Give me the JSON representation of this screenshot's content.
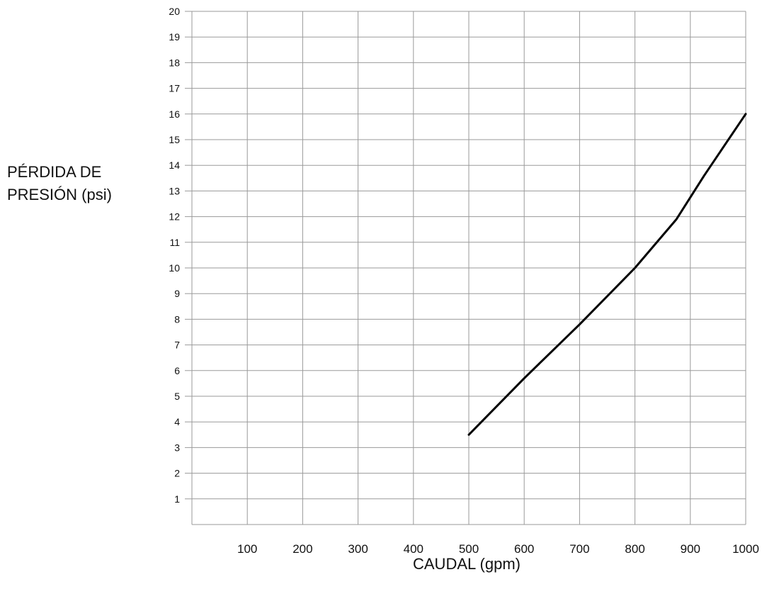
{
  "chart_data": {
    "type": "line",
    "title": "",
    "xlabel": "CAUDAL (gpm)",
    "ylabel_lines": [
      "PÉRDIDA DE",
      "PRESIÓN (psi)"
    ],
    "xlim": [
      0,
      1000
    ],
    "ylim": [
      0,
      20
    ],
    "x_ticks": [
      100,
      200,
      300,
      400,
      500,
      600,
      700,
      800,
      900,
      1000
    ],
    "y_ticks": [
      1,
      2,
      3,
      4,
      5,
      6,
      7,
      8,
      9,
      10,
      11,
      12,
      13,
      14,
      15,
      16,
      17,
      18,
      19,
      20
    ],
    "grid": true,
    "series": [
      {
        "color": "#000000",
        "x": [
          500,
          600,
          700,
          800,
          875,
          925,
          1000
        ],
        "y": [
          3.5,
          5.7,
          7.8,
          10.0,
          11.9,
          13.6,
          16.0
        ]
      }
    ]
  }
}
